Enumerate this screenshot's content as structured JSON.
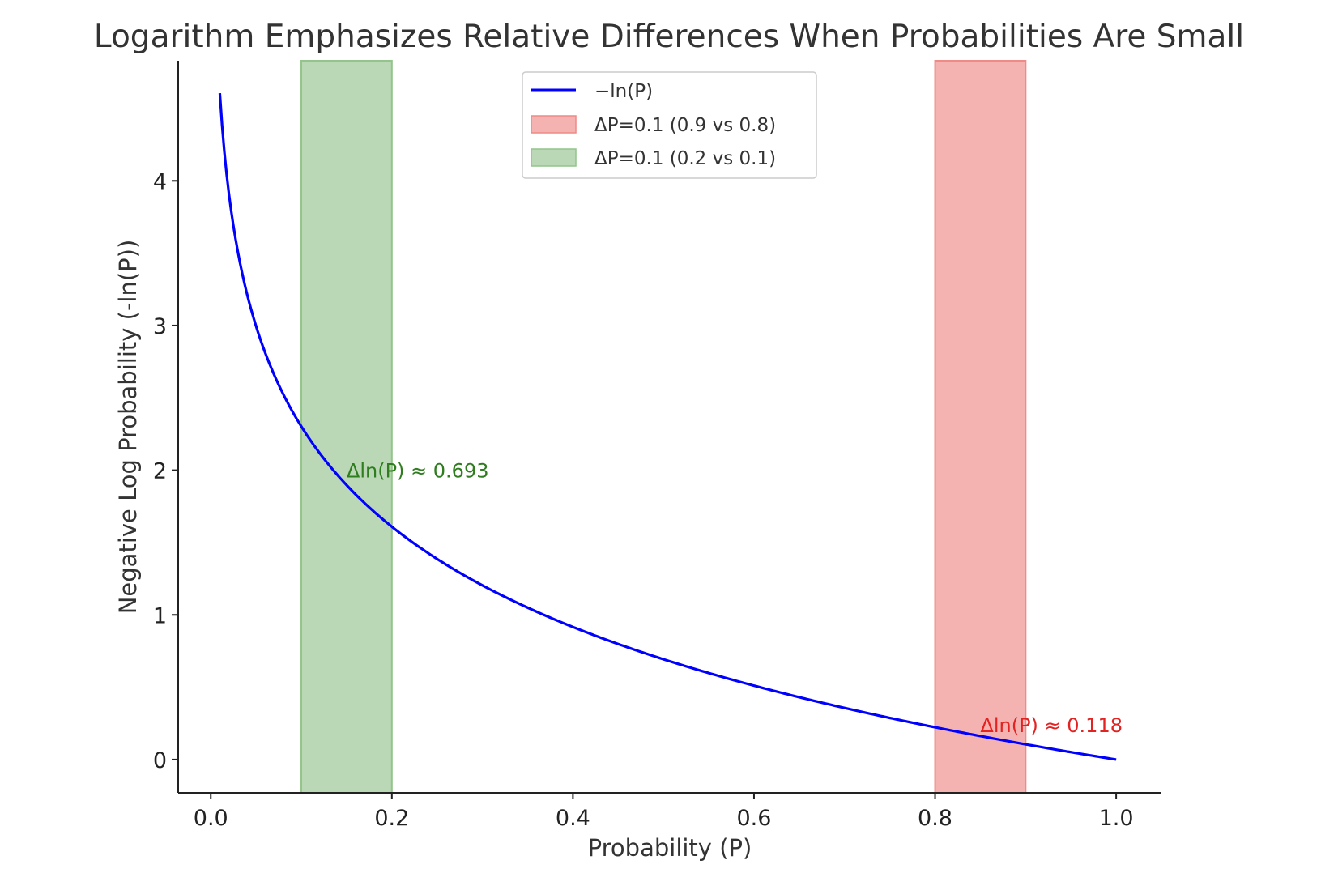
{
  "chart_data": {
    "type": "line",
    "title": "Logarithm Emphasizes Relative Differences When Probabilities Are Small",
    "xlabel": "Probability (P)",
    "ylabel": "Negative Log Probability (-ln(P))",
    "xlim": [
      -0.036,
      1.05
    ],
    "ylim": [
      -0.23,
      4.83
    ],
    "x_ticks": [
      0.0,
      0.2,
      0.4,
      0.6,
      0.8,
      1.0
    ],
    "x_tick_labels": [
      "0.0",
      "0.2",
      "0.4",
      "0.6",
      "0.8",
      "1.0"
    ],
    "y_ticks": [
      0,
      1,
      2,
      3,
      4
    ],
    "y_tick_labels": [
      "0",
      "1",
      "2",
      "3",
      "4"
    ],
    "grid": false,
    "legend_position": "top-center",
    "series": [
      {
        "name": "−ln(P)",
        "color": "#0000ff",
        "function": "-ln(x)",
        "x_range": [
          0.01,
          1.0
        ],
        "x": [
          0.01,
          0.02,
          0.03,
          0.04,
          0.05,
          0.06,
          0.08,
          0.1,
          0.12,
          0.15,
          0.2,
          0.25,
          0.3,
          0.35,
          0.4,
          0.45,
          0.5,
          0.55,
          0.6,
          0.65,
          0.7,
          0.75,
          0.8,
          0.85,
          0.9,
          0.95,
          1.0
        ],
        "y": [
          4.605,
          3.912,
          3.507,
          3.219,
          2.996,
          2.813,
          2.526,
          2.303,
          2.12,
          1.897,
          1.609,
          1.386,
          1.204,
          1.05,
          0.916,
          0.799,
          0.693,
          0.598,
          0.511,
          0.431,
          0.357,
          0.288,
          0.223,
          0.163,
          0.105,
          0.051,
          0.0
        ]
      }
    ],
    "shaded_regions": [
      {
        "name": "ΔP=0.1 (0.9 vs 0.8)",
        "x_start": 0.8,
        "x_end": 0.9,
        "fill_color": "#f4b3b1",
        "edge_color": "#ef8a87"
      },
      {
        "name": "ΔP=0.1 (0.2 vs 0.1)",
        "x_start": 0.1,
        "x_end": 0.2,
        "fill_color": "#bad8b5",
        "edge_color": "#93c48b"
      }
    ],
    "annotations": [
      {
        "text": "Δln(P) ≈ 0.693",
        "x": 0.15,
        "y": 2.0,
        "color": "#2f7d1f"
      },
      {
        "text": "Δln(P) ≈ 0.118",
        "x": 0.85,
        "y": 0.24,
        "color": "#e32222"
      }
    ]
  }
}
